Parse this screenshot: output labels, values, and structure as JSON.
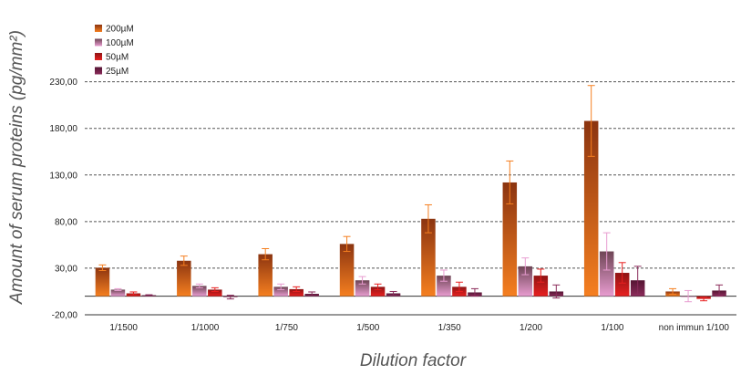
{
  "chart_data": {
    "type": "bar",
    "xlabel": "Dilution factor",
    "ylabel": "Amount of serum proteins (pg/mm²)",
    "ylim": [
      -20,
      260
    ],
    "yticks": [
      "-20,00",
      "30,00",
      "80,00",
      "130,00",
      "180,00",
      "230,00"
    ],
    "grid": true,
    "legend_position": "top-left",
    "categories": [
      "1/1500",
      "1/1000",
      "1/750",
      "1/500",
      "1/350",
      "1/200",
      "1/100",
      "non immun 1/100"
    ],
    "series": [
      {
        "name": "200µM",
        "color_top": "#8b3410",
        "color_bottom": "#f57f20",
        "values": [
          30.5,
          38,
          45,
          56,
          83,
          122,
          188,
          5
        ],
        "errors": [
          3,
          5,
          6,
          8,
          15,
          23,
          38,
          3
        ]
      },
      {
        "name": "100µM",
        "color_top": "#6e4555",
        "color_bottom": "#e89cd0",
        "values": [
          7,
          11,
          10,
          17,
          22,
          32,
          48,
          0
        ],
        "errors": [
          1,
          2,
          3,
          4,
          6,
          9,
          20,
          6
        ]
      },
      {
        "name": "50µM",
        "color_top": "#8e1414",
        "color_bottom": "#e82020",
        "values": [
          3,
          7,
          7.5,
          10,
          10,
          22,
          25,
          -3
        ],
        "errors": [
          1.5,
          2,
          2.5,
          3,
          5,
          7,
          11,
          2
        ]
      },
      {
        "name": "25µM",
        "color_top": "#551533",
        "color_bottom": "#8a2b5a",
        "values": [
          1,
          -1,
          2.5,
          3,
          4,
          5,
          17,
          6
        ],
        "errors": [
          0.5,
          2,
          2,
          2,
          4,
          7,
          15,
          6
        ]
      }
    ]
  }
}
